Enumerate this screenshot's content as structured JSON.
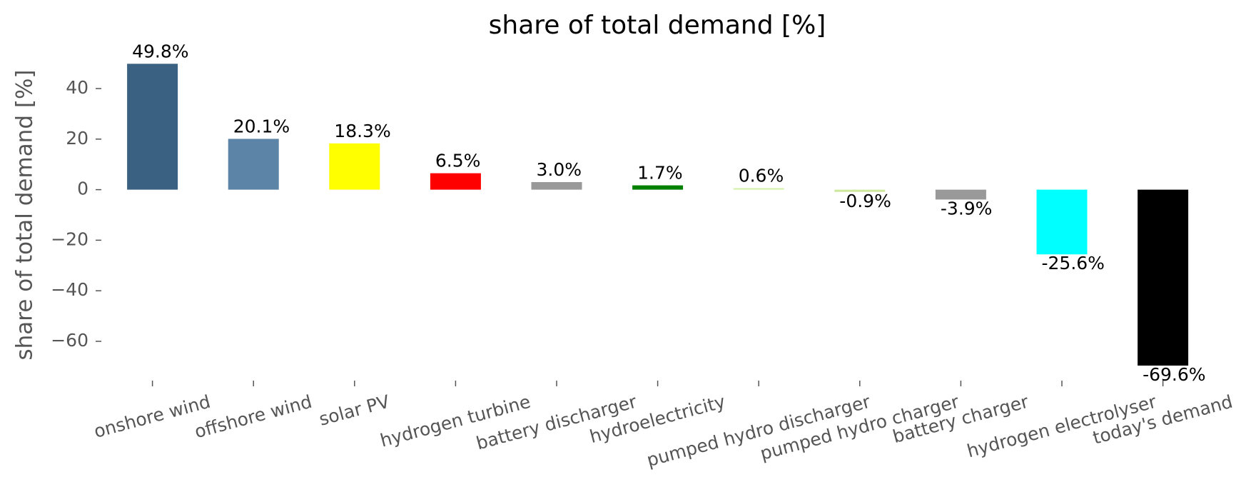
{
  "chart_data": {
    "type": "bar",
    "title": "share of total demand [%]",
    "y_label": "share of total demand [%]",
    "categories": [
      "onshore wind",
      "offshore wind",
      "solar PV",
      "hydrogen turbine",
      "battery discharger",
      "hydroelectricity",
      "pumped hydro discharger",
      "pumped hydro charger",
      "battery charger",
      "hydrogen electrolyser",
      "today's demand"
    ],
    "values": [
      49.8,
      20.1,
      18.3,
      6.5,
      3.0,
      1.7,
      0.6,
      -0.9,
      -3.9,
      -25.6,
      -69.6
    ],
    "value_labels": [
      "49.8%",
      "20.1%",
      "18.3%",
      "6.5%",
      "3.0%",
      "1.7%",
      "0.6%",
      "-0.9%",
      "-3.9%",
      "-25.6%",
      "-69.6%"
    ],
    "colors": [
      "#3b6182",
      "#5b84a6",
      "#ffff00",
      "#ff0000",
      "#999999",
      "#008000",
      "#d4f0a8",
      "#cfe8a0",
      "#999999",
      "#00ffff",
      "#000000"
    ],
    "ylim": [
      -73,
      53
    ],
    "yticks": [
      {
        "value": -60,
        "label": "−60"
      },
      {
        "value": -40,
        "label": "−40"
      },
      {
        "value": -20,
        "label": "−20"
      },
      0,
      20,
      40
    ],
    "grid": false
  }
}
